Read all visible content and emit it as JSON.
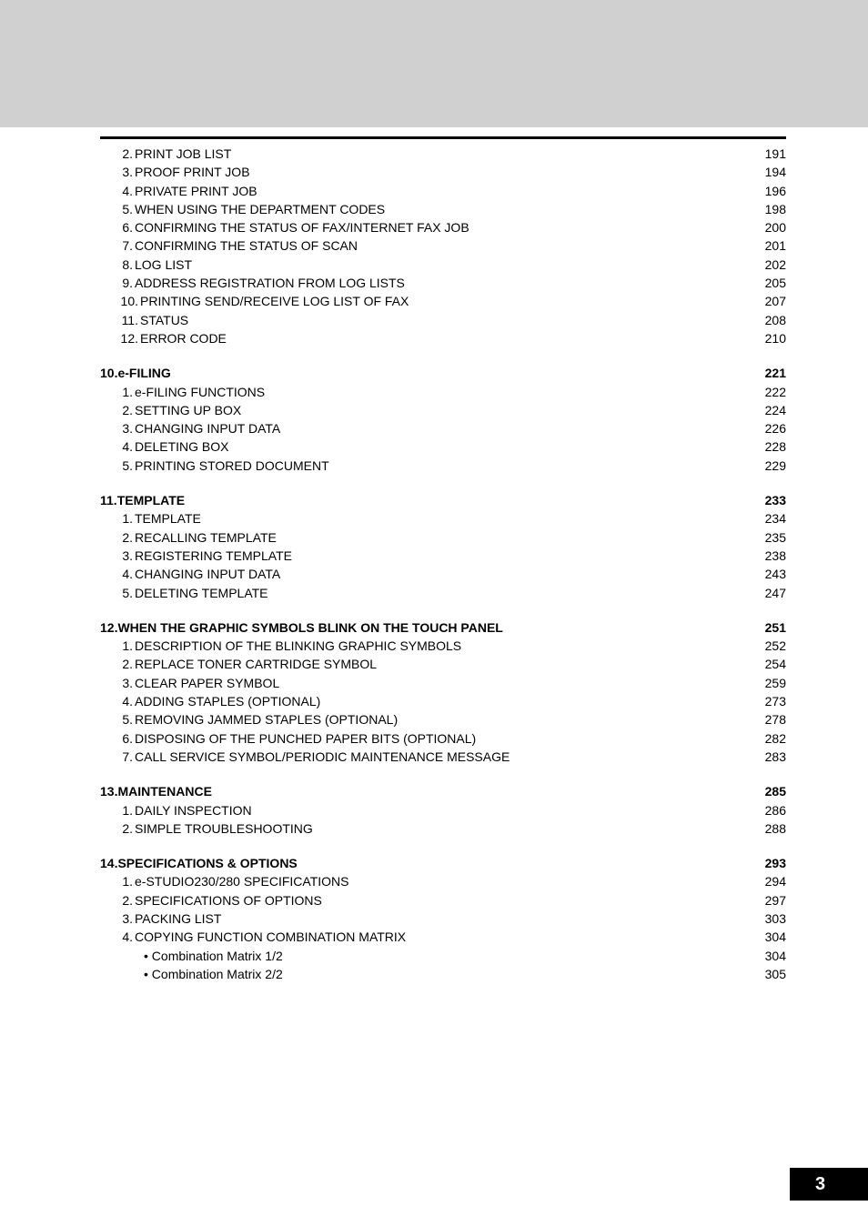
{
  "toc": {
    "first_group": [
      {
        "num": "2.",
        "label": "PRINT JOB LIST",
        "page": "191"
      },
      {
        "num": "3.",
        "label": "PROOF PRINT JOB",
        "page": "194"
      },
      {
        "num": "4.",
        "label": "PRIVATE PRINT JOB",
        "page": "196"
      },
      {
        "num": "5.",
        "label": "WHEN USING THE DEPARTMENT CODES",
        "page": "198"
      },
      {
        "num": "6.",
        "label": "CONFIRMING THE STATUS OF FAX/INTERNET FAX JOB",
        "page": "200"
      },
      {
        "num": "7.",
        "label": "CONFIRMING THE STATUS OF SCAN",
        "page": "201"
      },
      {
        "num": "8.",
        "label": "LOG LIST",
        "page": "202"
      },
      {
        "num": "9.",
        "label": "ADDRESS REGISTRATION FROM LOG LISTS",
        "page": "205"
      },
      {
        "num": "10.",
        "label": "PRINTING SEND/RECEIVE LOG LIST OF FAX",
        "page": "207"
      },
      {
        "num": "11.",
        "label": "STATUS",
        "page": "208"
      },
      {
        "num": "12.",
        "label": "ERROR CODE",
        "page": "210"
      }
    ],
    "sections": [
      {
        "head": {
          "label": "10.e-FILING",
          "page": "221"
        },
        "items": [
          {
            "num": "1.",
            "label": "e-FILING FUNCTIONS",
            "page": "222"
          },
          {
            "num": "2.",
            "label": "SETTING UP BOX",
            "page": "224"
          },
          {
            "num": "3.",
            "label": "CHANGING INPUT DATA",
            "page": "226"
          },
          {
            "num": "4.",
            "label": "DELETING BOX",
            "page": "228"
          },
          {
            "num": "5.",
            "label": "PRINTING STORED DOCUMENT",
            "page": "229"
          }
        ]
      },
      {
        "head": {
          "label": "11.TEMPLATE",
          "page": "233"
        },
        "items": [
          {
            "num": "1.",
            "label": "TEMPLATE",
            "page": "234"
          },
          {
            "num": "2.",
            "label": "RECALLING TEMPLATE",
            "page": "235"
          },
          {
            "num": "3.",
            "label": "REGISTERING TEMPLATE",
            "page": "238"
          },
          {
            "num": "4.",
            "label": "CHANGING INPUT DATA",
            "page": "243"
          },
          {
            "num": "5.",
            "label": "DELETING TEMPLATE",
            "page": "247"
          }
        ]
      },
      {
        "head": {
          "label": "12.WHEN THE GRAPHIC SYMBOLS BLINK ON THE TOUCH PANEL",
          "page": "251"
        },
        "items": [
          {
            "num": "1.",
            "label": "DESCRIPTION OF THE BLINKING GRAPHIC SYMBOLS",
            "page": "252"
          },
          {
            "num": "2.",
            "label": "REPLACE TONER CARTRIDGE SYMBOL",
            "page": "254"
          },
          {
            "num": "3.",
            "label": "CLEAR PAPER SYMBOL",
            "page": "259"
          },
          {
            "num": "4.",
            "label": "ADDING STAPLES (OPTIONAL)",
            "page": "273"
          },
          {
            "num": "5.",
            "label": "REMOVING JAMMED STAPLES (OPTIONAL)",
            "page": "278"
          },
          {
            "num": "6.",
            "label": "DISPOSING OF THE PUNCHED PAPER BITS (OPTIONAL)",
            "page": "282"
          },
          {
            "num": "7.",
            "label": "CALL SERVICE SYMBOL/PERIODIC MAINTENANCE MESSAGE",
            "page": "283"
          }
        ]
      },
      {
        "head": {
          "label": "13.MAINTENANCE",
          "page": "285"
        },
        "items": [
          {
            "num": "1.",
            "label": "DAILY INSPECTION",
            "page": "286"
          },
          {
            "num": "2.",
            "label": "SIMPLE TROUBLESHOOTING",
            "page": "288"
          }
        ]
      },
      {
        "head": {
          "label": "14.SPECIFICATIONS & OPTIONS",
          "page": "293"
        },
        "items": [
          {
            "num": "1.",
            "label": "e-STUDIO230/280 SPECIFICATIONS",
            "page": "294"
          },
          {
            "num": "2.",
            "label": "SPECIFICATIONS OF OPTIONS",
            "page": "297"
          },
          {
            "num": "3.",
            "label": "PACKING LIST",
            "page": "303"
          },
          {
            "num": "4.",
            "label": "COPYING FUNCTION COMBINATION MATRIX",
            "page": "304"
          }
        ],
        "subitems": [
          {
            "label": "Combination Matrix 1/2",
            "page": "304"
          },
          {
            "label": "Combination Matrix 2/2",
            "page": "305"
          }
        ]
      }
    ]
  },
  "page_number": "3"
}
